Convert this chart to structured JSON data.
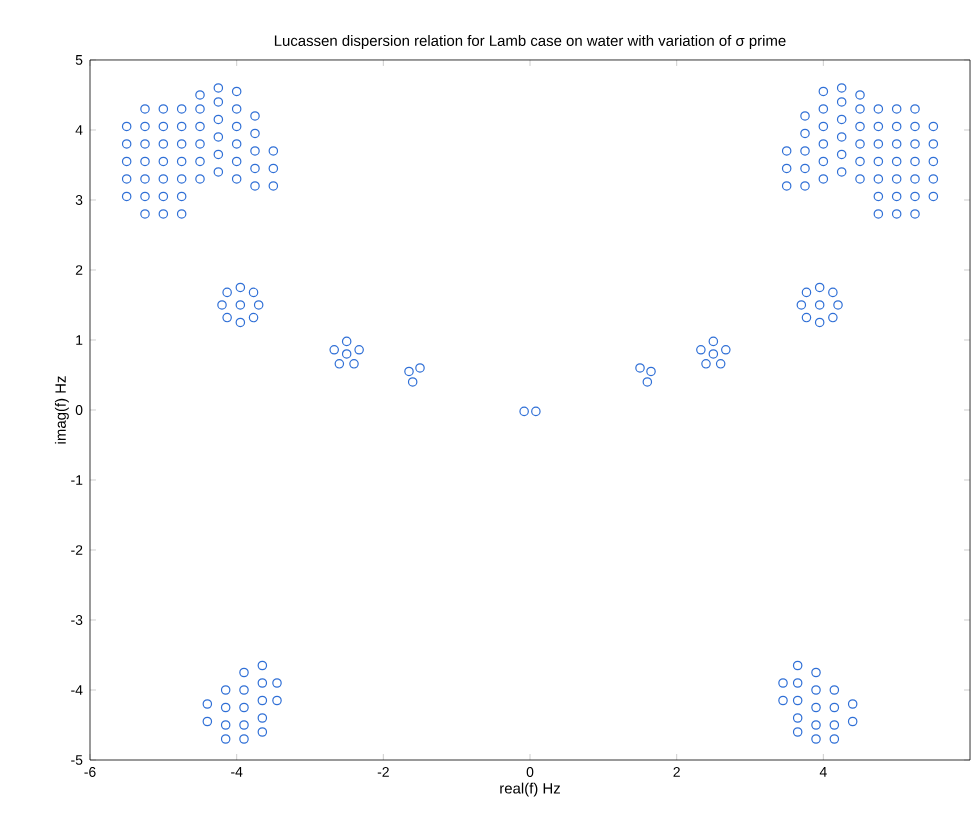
{
  "chart_data": {
    "type": "scatter",
    "title": "Lucassen dispersion relation for Lamb case on water with variation of σ prime",
    "xlabel": "real(f)  Hz",
    "ylabel": "imag(f)  Hz",
    "xlim": [
      -6,
      6
    ],
    "ylim": [
      -5,
      5
    ],
    "xticks": [
      -6,
      -4,
      -2,
      0,
      2,
      4
    ],
    "yticks": [
      -5,
      -4,
      -3,
      -2,
      -1,
      0,
      1,
      2,
      3,
      4,
      5
    ],
    "marker": "circle",
    "grid": false,
    "series": [
      {
        "color": "#2f6fd6",
        "x": [
          -5.5,
          -5.5,
          -5.5,
          -5.5,
          -5.5,
          -5.25,
          -5.25,
          -5.25,
          -5.25,
          -5.25,
          -5.25,
          -5.25,
          -5.0,
          -5.0,
          -5.0,
          -5.0,
          -5.0,
          -5.0,
          -5.0,
          -4.75,
          -4.75,
          -4.75,
          -4.75,
          -4.75,
          -4.75,
          -4.75,
          -4.5,
          -4.5,
          -4.5,
          -4.5,
          -4.5,
          -4.5,
          -4.25,
          -4.25,
          -4.25,
          -4.25,
          -4.25,
          -4.25,
          -4.0,
          -4.0,
          -4.0,
          -4.0,
          -4.0,
          -4.0,
          -3.75,
          -3.75,
          -3.75,
          -3.75,
          -3.75,
          -3.5,
          -3.5,
          -3.5,
          5.5,
          5.5,
          5.5,
          5.5,
          5.5,
          5.25,
          5.25,
          5.25,
          5.25,
          5.25,
          5.25,
          5.25,
          5.0,
          5.0,
          5.0,
          5.0,
          5.0,
          5.0,
          5.0,
          4.75,
          4.75,
          4.75,
          4.75,
          4.75,
          4.75,
          4.75,
          4.5,
          4.5,
          4.5,
          4.5,
          4.5,
          4.5,
          4.25,
          4.25,
          4.25,
          4.25,
          4.25,
          4.25,
          4.0,
          4.0,
          4.0,
          4.0,
          4.0,
          4.0,
          3.75,
          3.75,
          3.75,
          3.75,
          3.75,
          3.5,
          3.5,
          3.5,
          -3.95,
          -3.7,
          -4.2,
          -3.95,
          -3.95,
          -3.77,
          -4.13,
          -3.77,
          -4.13,
          3.95,
          3.7,
          4.2,
          3.95,
          3.95,
          3.77,
          4.13,
          3.77,
          4.13,
          -2.5,
          -2.5,
          -2.33,
          -2.67,
          -2.4,
          -2.6,
          2.5,
          2.5,
          2.33,
          2.67,
          2.4,
          2.6,
          -1.65,
          -1.5,
          -1.6,
          1.5,
          1.65,
          1.6,
          -0.08,
          0.08,
          -4.4,
          -4.4,
          -4.15,
          -4.15,
          -4.15,
          -4.15,
          -3.9,
          -3.9,
          -3.9,
          -3.9,
          -3.9,
          -3.65,
          -3.65,
          -3.65,
          -3.65,
          -3.65,
          -3.45,
          -3.45,
          4.4,
          4.4,
          4.15,
          4.15,
          4.15,
          4.15,
          3.9,
          3.9,
          3.9,
          3.9,
          3.9,
          3.65,
          3.65,
          3.65,
          3.65,
          3.65,
          3.45,
          3.45
        ],
        "values": [
          3.05,
          3.3,
          3.55,
          3.8,
          4.05,
          2.8,
          3.05,
          3.3,
          3.55,
          3.8,
          4.05,
          4.3,
          2.8,
          3.05,
          3.3,
          3.55,
          3.8,
          4.05,
          4.3,
          2.8,
          3.05,
          3.3,
          3.55,
          3.8,
          4.05,
          4.3,
          3.3,
          3.55,
          3.8,
          4.05,
          4.3,
          4.5,
          3.4,
          3.65,
          3.9,
          4.15,
          4.4,
          4.6,
          3.3,
          3.55,
          3.8,
          4.05,
          4.3,
          4.55,
          3.2,
          3.45,
          3.7,
          3.95,
          4.2,
          3.2,
          3.45,
          3.7,
          3.05,
          3.3,
          3.55,
          3.8,
          4.05,
          2.8,
          3.05,
          3.3,
          3.55,
          3.8,
          4.05,
          4.3,
          2.8,
          3.05,
          3.3,
          3.55,
          3.8,
          4.05,
          4.3,
          2.8,
          3.05,
          3.3,
          3.55,
          3.8,
          4.05,
          4.3,
          3.3,
          3.55,
          3.8,
          4.05,
          4.3,
          4.5,
          3.4,
          3.65,
          3.9,
          4.15,
          4.4,
          4.6,
          3.3,
          3.55,
          3.8,
          4.05,
          4.3,
          4.55,
          3.2,
          3.45,
          3.7,
          3.95,
          4.2,
          3.2,
          3.45,
          3.7,
          1.5,
          1.5,
          1.5,
          1.75,
          1.25,
          1.68,
          1.68,
          1.32,
          1.32,
          1.5,
          1.5,
          1.5,
          1.75,
          1.25,
          1.68,
          1.68,
          1.32,
          1.32,
          0.8,
          0.98,
          0.86,
          0.86,
          0.66,
          0.66,
          0.8,
          0.98,
          0.86,
          0.86,
          0.66,
          0.66,
          0.55,
          0.6,
          0.4,
          0.6,
          0.55,
          0.4,
          -0.02,
          -0.02,
          -4.2,
          -4.45,
          -4.0,
          -4.25,
          -4.5,
          -4.7,
          -3.75,
          -4.0,
          -4.25,
          -4.5,
          -4.7,
          -3.65,
          -3.9,
          -4.15,
          -4.4,
          -4.6,
          -3.9,
          -4.15,
          -4.2,
          -4.45,
          -4.0,
          -4.25,
          -4.5,
          -4.7,
          -3.75,
          -4.0,
          -4.25,
          -4.5,
          -4.7,
          -3.65,
          -3.9,
          -4.15,
          -4.4,
          -4.6,
          -3.9,
          -4.15
        ]
      }
    ]
  }
}
